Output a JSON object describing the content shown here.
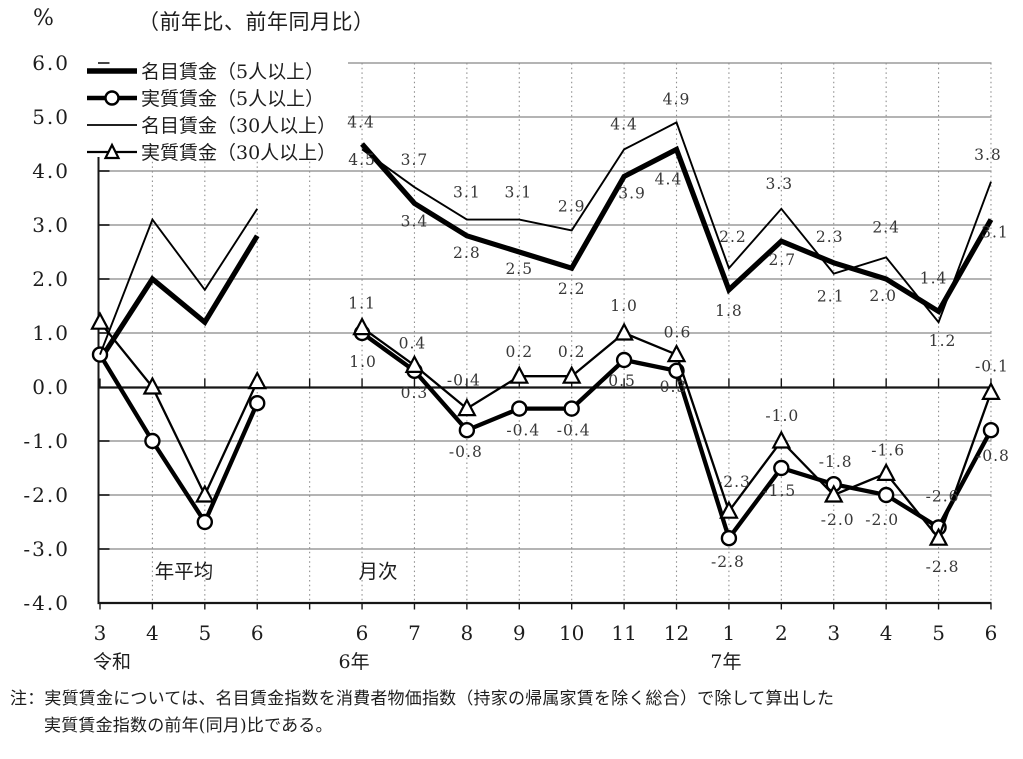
{
  "note": {
    "line1": "注：実質賃金については、名目賃金指数を消費者物価指数（持家の帰属家賃を除く総合）で除して算出した",
    "line2": "実質賃金指数の前年(同月)比である。"
  },
  "chart_data": {
    "type": "line",
    "title": "（前年比、前年同月比）",
    "ylabel": "%",
    "xlabel": "",
    "ylim": [
      -4.0,
      6.0
    ],
    "grid": true,
    "legend_position": "top-left",
    "yticks": [
      {
        "v": 6,
        "label": "6.0"
      },
      {
        "v": 5,
        "label": "5.0"
      },
      {
        "v": 4,
        "label": "4.0"
      },
      {
        "v": 3,
        "label": "3.0"
      },
      {
        "v": 2,
        "label": "2.0"
      },
      {
        "v": 1,
        "label": "1.0"
      },
      {
        "v": 0,
        "label": "0.0"
      },
      {
        "v": -1,
        "label": "-1.0"
      },
      {
        "v": -2,
        "label": "-2.0"
      },
      {
        "v": -3,
        "label": "-3.0"
      },
      {
        "v": -4,
        "label": "-4.0"
      }
    ],
    "x_categories": [
      "3",
      "4",
      "5",
      "6",
      "",
      "6",
      "7",
      "8",
      "9",
      "10",
      "11",
      "12",
      "1",
      "2",
      "3",
      "4",
      "5",
      "6"
    ],
    "era_labels": [
      {
        "text": "令和",
        "col": 0,
        "dx": 12
      },
      {
        "text": "6年",
        "col": 5,
        "dx": -8
      },
      {
        "text": "7年",
        "col": 12,
        "dx": -3
      }
    ],
    "section_labels": {
      "annual": {
        "text": "年平均",
        "x": 184,
        "y": 578
      },
      "monthly": {
        "text": "月次",
        "x": 378,
        "y": 578
      }
    },
    "colors": {
      "line": "#000000",
      "grid": "#9c9c9c",
      "text": "#1d1d1d"
    },
    "series": [
      {
        "name": "名目賃金（5人以上）",
        "measure": "名目賃金",
        "group": "5人以上",
        "line_style": "thick",
        "marker": "none",
        "values": [
          0.5,
          2.0,
          1.2,
          2.8,
          null,
          4.5,
          3.4,
          2.8,
          2.5,
          2.2,
          3.9,
          4.4,
          1.8,
          2.7,
          2.3,
          2.0,
          1.4,
          3.1
        ],
        "labels": [
          null,
          null,
          null,
          null,
          null,
          [
            "4.5",
            "b",
            0,
            0
          ],
          [
            "3.4",
            "b",
            0,
            2
          ],
          [
            "2.8",
            "b",
            0,
            1
          ],
          [
            "2.5",
            "b",
            0,
            1
          ],
          [
            "2.2",
            "b",
            0,
            5
          ],
          [
            "3.9",
            "b",
            8,
            1
          ],
          [
            "4.4",
            "b",
            -8,
            14
          ],
          [
            "1.8",
            "b",
            0,
            5
          ],
          [
            "2.7",
            "b",
            1,
            3
          ],
          [
            "2.3",
            "a",
            -4,
            -4
          ],
          [
            "2.0",
            "b",
            -3,
            1
          ],
          [
            "1.4",
            "a",
            -5,
            -11
          ],
          [
            "3.1",
            "b",
            4,
            -3
          ]
        ]
      },
      {
        "name": "実質賃金（5人以上）",
        "measure": "実質賃金",
        "group": "5人以上",
        "line_style": "thick",
        "marker": "circle",
        "values": [
          0.6,
          -1.0,
          -2.5,
          -0.3,
          null,
          1.0,
          0.3,
          -0.8,
          -0.4,
          -0.4,
          0.5,
          0.3,
          -2.8,
          -1.5,
          -1.8,
          -2.0,
          -2.6,
          -0.8
        ],
        "labels": [
          null,
          null,
          null,
          null,
          null,
          [
            "1.0",
            "b",
            1,
            7
          ],
          [
            "0.3",
            "b",
            0,
            0
          ],
          [
            "-0.8",
            "b",
            -1,
            0
          ],
          [
            "-0.4",
            "b",
            4,
            0
          ],
          [
            "-0.4",
            "b",
            2,
            0
          ],
          [
            "0.5",
            "b",
            -2,
            -1
          ],
          [
            "0.3",
            "b",
            -3,
            -6
          ],
          [
            "-2.8",
            "b",
            -1,
            2
          ],
          [
            "-1.5",
            "b",
            -2,
            1
          ],
          [
            "-1.8",
            "a",
            2,
            0
          ],
          [
            "-2.0",
            "b",
            -4,
            3
          ],
          [
            "-2.6",
            "a",
            4,
            -9
          ],
          [
            "-0.8",
            "b",
            2,
            4
          ]
        ]
      },
      {
        "name": "名目賃金（30人以上）",
        "measure": "名目賃金",
        "group": "30人以上",
        "line_style": "thin",
        "marker": "none",
        "values": [
          0.6,
          3.1,
          1.8,
          3.3,
          null,
          4.4,
          3.7,
          3.1,
          3.1,
          2.9,
          4.4,
          4.9,
          2.2,
          3.3,
          2.1,
          2.4,
          1.2,
          3.8
        ],
        "labels": [
          null,
          null,
          null,
          null,
          null,
          [
            "4.4",
            "a",
            -1,
            -5
          ],
          [
            "3.7",
            "a",
            0,
            -5
          ],
          [
            "3.1",
            "a",
            0,
            -5
          ],
          [
            "3.1",
            "a",
            -1,
            -5
          ],
          [
            "2.9",
            "a",
            0,
            -2
          ],
          [
            "4.4",
            "a",
            0,
            -3
          ],
          [
            "4.9",
            "a",
            0,
            -1
          ],
          [
            "2.2",
            "a",
            4,
            -9
          ],
          [
            "3.3",
            "a",
            -2,
            -3
          ],
          [
            "2.1",
            "b",
            -3,
            7
          ],
          [
            "2.4",
            "a",
            0,
            -8
          ],
          [
            "1.2",
            "b",
            4,
            3
          ],
          [
            "3.8",
            "a",
            -3,
            -5
          ]
        ]
      },
      {
        "name": "実質賃金（30人以上）",
        "measure": "実質賃金",
        "group": "30人以上",
        "line_style": "thin",
        "marker": "triangle",
        "values": [
          1.2,
          0.0,
          -2.0,
          0.1,
          null,
          1.1,
          0.4,
          -0.4,
          0.2,
          0.2,
          1.0,
          0.6,
          -2.3,
          -1.0,
          -2.0,
          -1.6,
          -2.8,
          -0.1
        ],
        "labels": [
          null,
          null,
          null,
          null,
          null,
          [
            "1.1",
            "a",
            0,
            -2
          ],
          [
            "0.4",
            "a",
            -2,
            0
          ],
          [
            "-0.4",
            "a",
            -3,
            -6
          ],
          [
            "0.2",
            "a",
            0,
            -2
          ],
          [
            "0.2",
            "a",
            0,
            -2
          ],
          [
            "1.0",
            "a",
            0,
            -5
          ],
          [
            "0.6",
            "a",
            1,
            0
          ],
          [
            "-2.3",
            "a",
            5,
            -7
          ],
          [
            "-1.0",
            "a",
            1,
            -3
          ],
          [
            "-2.0",
            "b",
            4,
            3
          ],
          [
            "-1.6",
            "a",
            2,
            -1
          ],
          [
            "-2.8",
            "b",
            4,
            7
          ],
          [
            "-0.1",
            "a",
            1,
            -4
          ]
        ]
      }
    ]
  }
}
